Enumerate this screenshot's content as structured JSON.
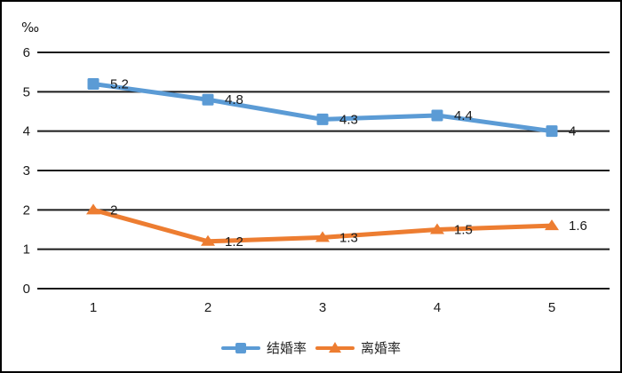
{
  "chart_data": {
    "type": "line",
    "title": "",
    "ylabel": "‰",
    "xlabel": "",
    "x": [
      1,
      2,
      3,
      4,
      5
    ],
    "ylim": [
      0,
      6
    ],
    "yticks": [
      0,
      1,
      2,
      3,
      4,
      5,
      6
    ],
    "grid": true,
    "legend_position": "bottom",
    "series": [
      {
        "name": "结婚率",
        "values": [
          5.2,
          4.8,
          4.3,
          4.4,
          4
        ],
        "labels": [
          "5.2",
          "4.8",
          "4.3",
          "4.4",
          "4"
        ],
        "color": "#5B9BD5",
        "marker": "square"
      },
      {
        "name": "离婚率",
        "values": [
          2,
          1.2,
          1.3,
          1.5,
          1.6
        ],
        "labels": [
          "2",
          "1.2",
          "1.3",
          "1.5",
          "1.6"
        ],
        "color": "#ED7D31",
        "marker": "triangle"
      }
    ],
    "colors": {
      "gridline": "#1a1a1a",
      "tick_text": "#1a1a1a",
      "data_label_text": "#1a1a1a"
    }
  }
}
